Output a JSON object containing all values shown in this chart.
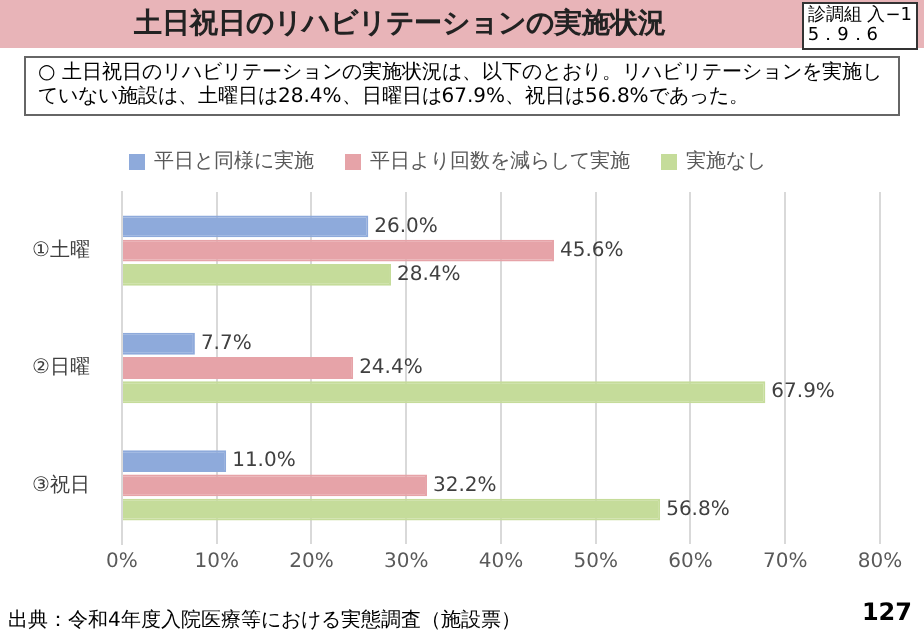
{
  "chart_data": {
    "type": "bar",
    "orientation": "horizontal",
    "title": "土日祝日のリハビリテーションの実施状況",
    "subtitle": "○ 土日祝日のリハビリテーションの実施状況は、以下のとおり。リハビリテーションを実施していない施設は、土曜日は28.4%、日曜日は67.9%、祝日は56.8%であった。",
    "categories": [
      "①土曜",
      "②日曜",
      "③祝日"
    ],
    "series": [
      {
        "name": "平日と同様に実施",
        "color": "#8eaadb",
        "values": [
          26.0,
          7.7,
          11.0
        ],
        "value_labels": [
          "26.0%",
          "7.7%",
          "11.0%"
        ]
      },
      {
        "name": "平日より回数を減らして実施",
        "color": "#e6a3a8",
        "values": [
          45.6,
          24.4,
          32.2
        ],
        "value_labels": [
          "45.6%",
          "24.4%",
          "32.2%"
        ]
      },
      {
        "name": "実施なし",
        "color": "#c5dc9a",
        "values": [
          28.4,
          67.9,
          56.8
        ],
        "value_labels": [
          "28.4%",
          "67.9%",
          "56.8%"
        ]
      }
    ],
    "xlim": [
      0,
      80
    ],
    "xticks": [
      {
        "value": 0,
        "label": "0%"
      },
      {
        "value": 10,
        "label": "10%"
      },
      {
        "value": 20,
        "label": "20%"
      },
      {
        "value": 30,
        "label": "30%"
      },
      {
        "value": 40,
        "label": "40%"
      },
      {
        "value": 50,
        "label": "50%"
      },
      {
        "value": 60,
        "label": "60%"
      },
      {
        "value": 70,
        "label": "70%"
      },
      {
        "value": 80,
        "label": "80%"
      }
    ],
    "grid": "x",
    "legend": "top",
    "annotations": [
      "診調組 入−1\n5．9．6",
      "出典：令和4年度入院医療等における実態調査（施設票）",
      "127"
    ]
  }
}
